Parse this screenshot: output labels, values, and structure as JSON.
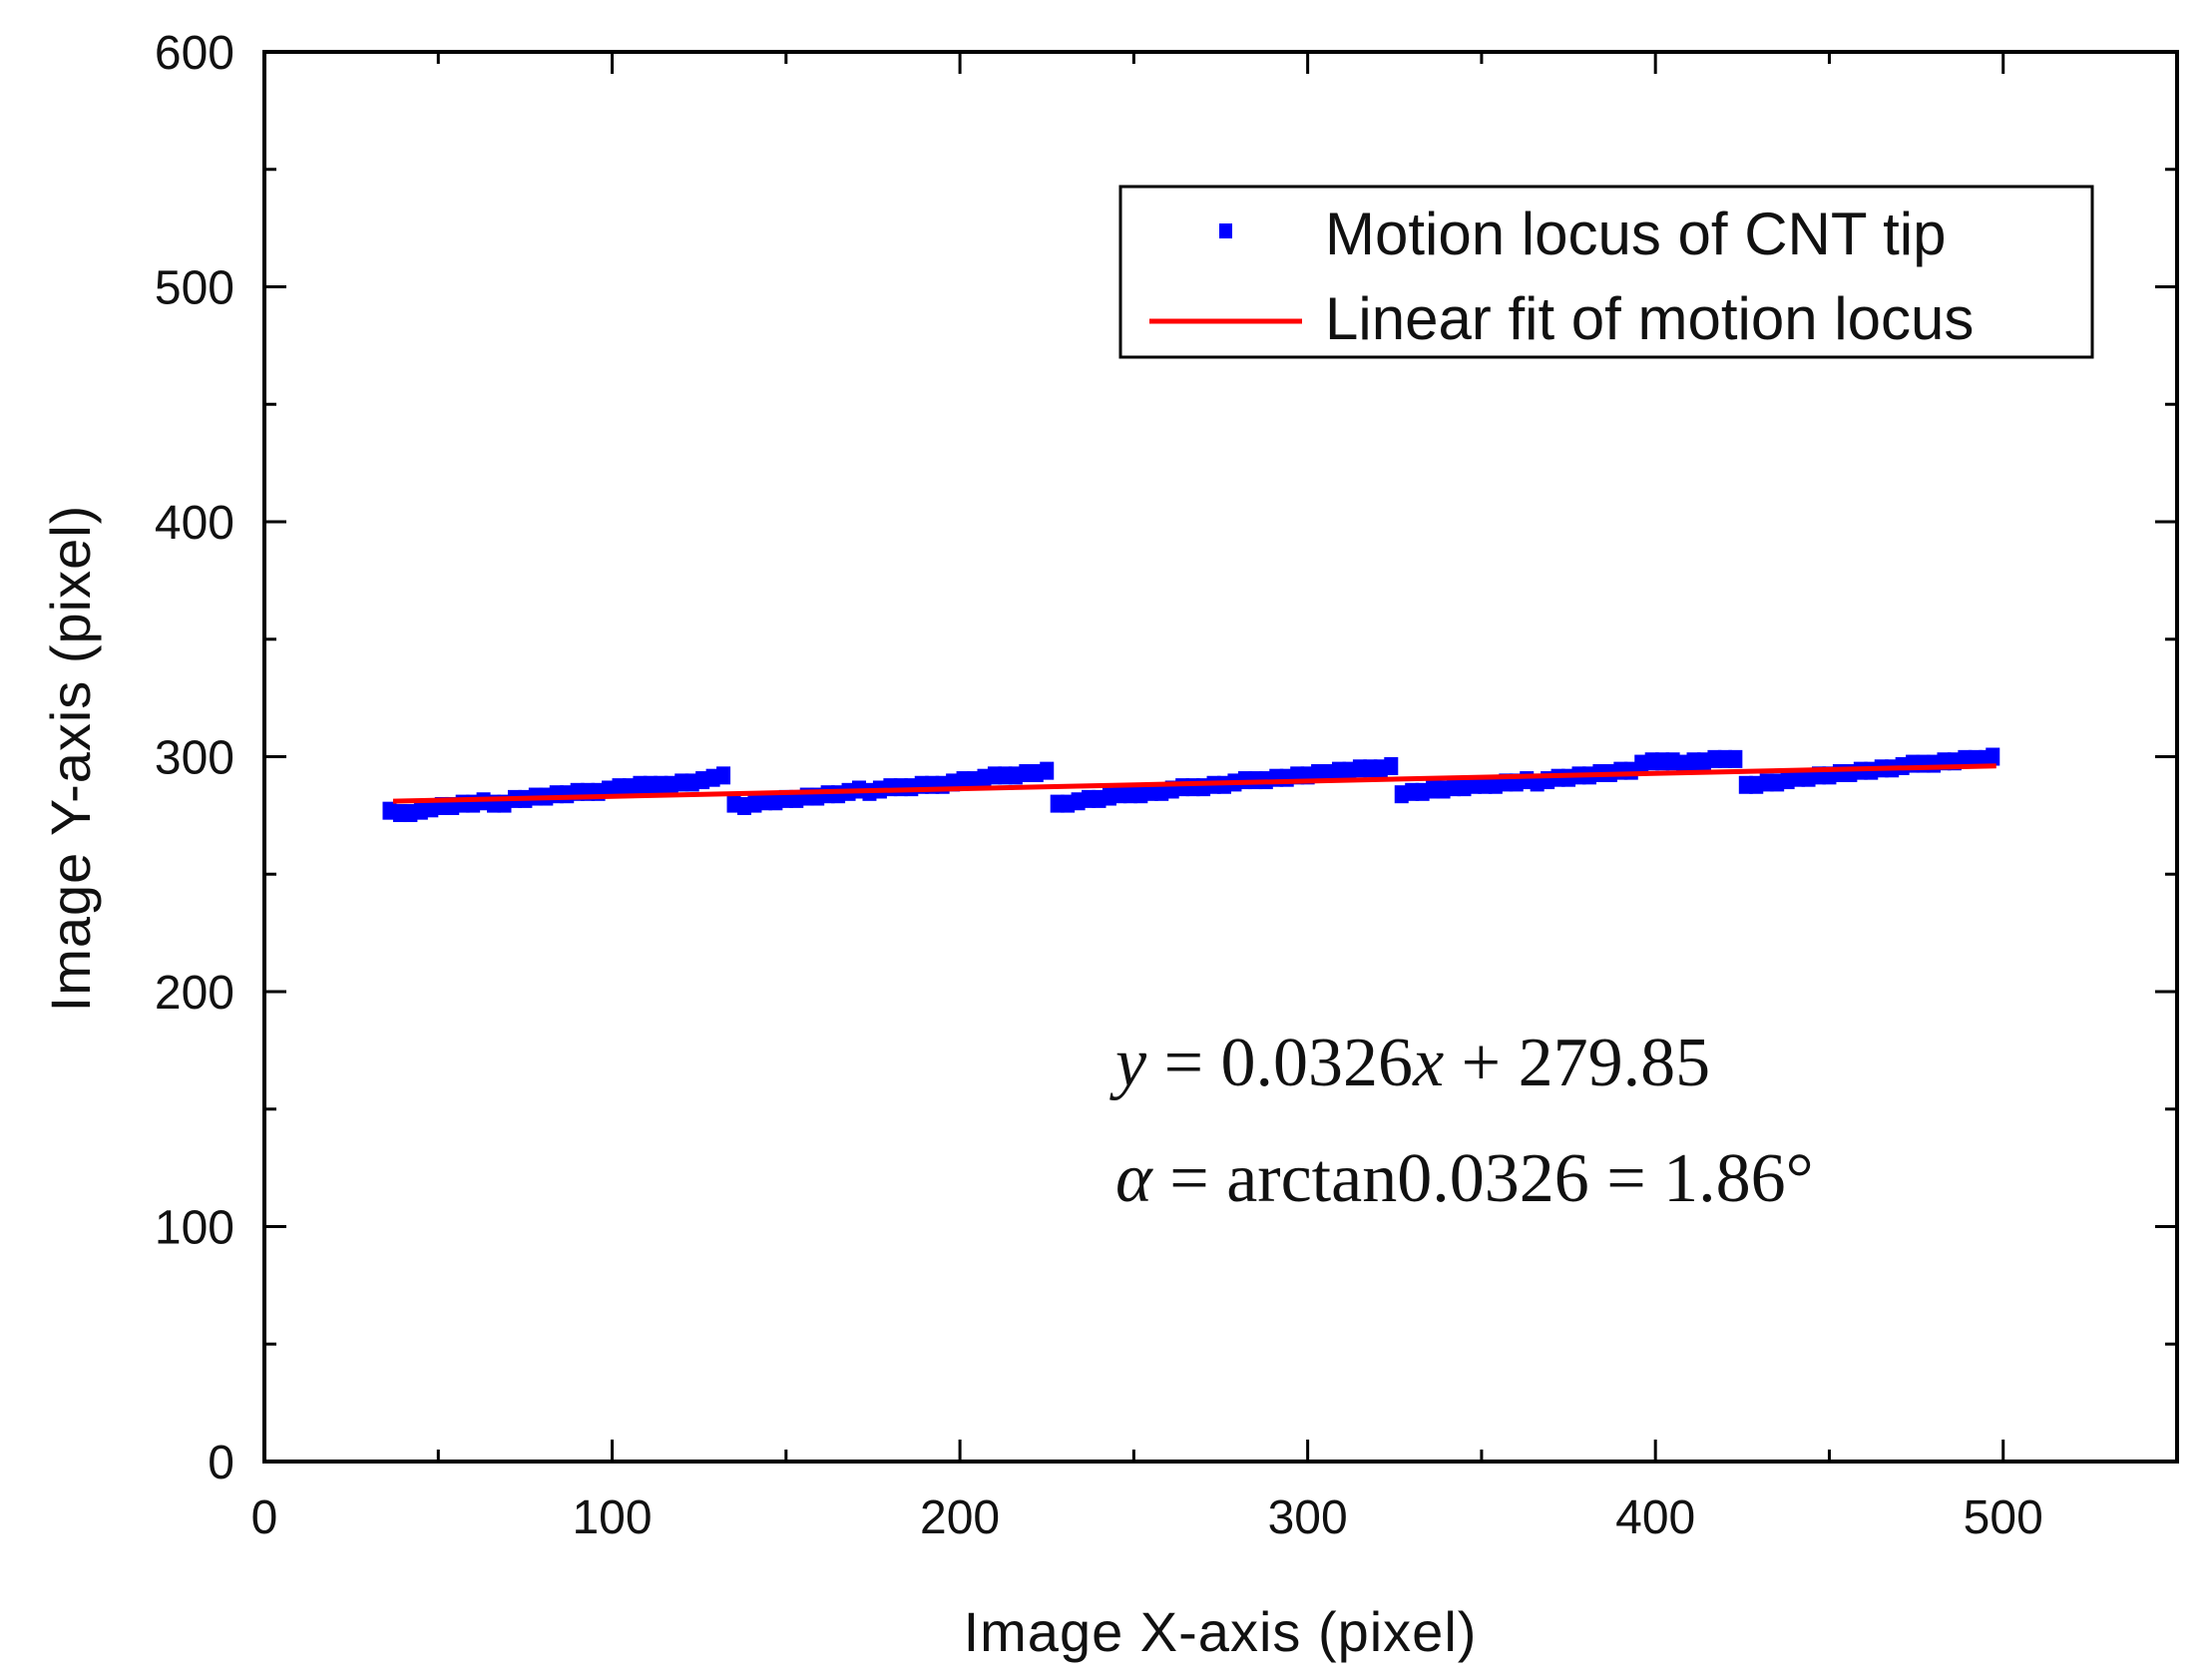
{
  "chart_data": {
    "type": "scatter",
    "title": "",
    "xlabel": "Image X-axis (pixel)",
    "ylabel": "Image Y-axis (pixel)",
    "xlim": [
      0,
      550
    ],
    "ylim": [
      0,
      600
    ],
    "x_ticks": [
      0,
      100,
      200,
      300,
      400,
      500
    ],
    "y_ticks": [
      0,
      100,
      200,
      300,
      400,
      500,
      600
    ],
    "grid": false,
    "legend_position": "top-right",
    "colors": {
      "points": "#0000ff",
      "fit": "#ff0000",
      "axis": "#000000"
    },
    "series": [
      {
        "name": "Motion locus of CNT tip",
        "kind": "scatter",
        "points": [
          [
            36,
            277
          ],
          [
            39,
            276
          ],
          [
            42,
            276
          ],
          [
            45,
            277
          ],
          [
            48,
            278
          ],
          [
            51,
            279
          ],
          [
            54,
            279
          ],
          [
            57,
            280
          ],
          [
            60,
            280
          ],
          [
            63,
            281
          ],
          [
            66,
            280
          ],
          [
            69,
            280
          ],
          [
            72,
            282
          ],
          [
            75,
            282
          ],
          [
            78,
            283
          ],
          [
            81,
            283
          ],
          [
            84,
            284
          ],
          [
            87,
            284
          ],
          [
            90,
            285
          ],
          [
            93,
            285
          ],
          [
            96,
            285
          ],
          [
            99,
            286
          ],
          [
            102,
            287
          ],
          [
            105,
            287
          ],
          [
            108,
            288
          ],
          [
            111,
            288
          ],
          [
            114,
            288
          ],
          [
            117,
            288
          ],
          [
            120,
            289
          ],
          [
            123,
            289
          ],
          [
            126,
            290
          ],
          [
            129,
            291
          ],
          [
            132,
            292
          ],
          [
            135,
            280
          ],
          [
            138,
            279
          ],
          [
            141,
            280
          ],
          [
            144,
            281
          ],
          [
            147,
            281
          ],
          [
            150,
            282
          ],
          [
            153,
            282
          ],
          [
            156,
            283
          ],
          [
            159,
            283
          ],
          [
            162,
            284
          ],
          [
            165,
            284
          ],
          [
            168,
            285
          ],
          [
            171,
            286
          ],
          [
            174,
            285
          ],
          [
            177,
            286
          ],
          [
            180,
            287
          ],
          [
            183,
            287
          ],
          [
            186,
            287
          ],
          [
            189,
            288
          ],
          [
            192,
            288
          ],
          [
            195,
            288
          ],
          [
            198,
            289
          ],
          [
            201,
            290
          ],
          [
            204,
            290
          ],
          [
            207,
            291
          ],
          [
            210,
            292
          ],
          [
            213,
            292
          ],
          [
            216,
            292
          ],
          [
            219,
            293
          ],
          [
            222,
            293
          ],
          [
            225,
            294
          ],
          [
            228,
            280
          ],
          [
            231,
            280
          ],
          [
            234,
            281
          ],
          [
            237,
            282
          ],
          [
            240,
            282
          ],
          [
            243,
            283
          ],
          [
            246,
            284
          ],
          [
            249,
            284
          ],
          [
            252,
            284
          ],
          [
            255,
            285
          ],
          [
            258,
            285
          ],
          [
            261,
            286
          ],
          [
            264,
            287
          ],
          [
            267,
            287
          ],
          [
            270,
            287
          ],
          [
            273,
            288
          ],
          [
            276,
            288
          ],
          [
            279,
            289
          ],
          [
            282,
            290
          ],
          [
            285,
            290
          ],
          [
            288,
            290
          ],
          [
            291,
            291
          ],
          [
            294,
            291
          ],
          [
            297,
            292
          ],
          [
            300,
            292
          ],
          [
            303,
            293
          ],
          [
            306,
            293
          ],
          [
            309,
            294
          ],
          [
            312,
            294
          ],
          [
            315,
            295
          ],
          [
            318,
            295
          ],
          [
            321,
            295
          ],
          [
            324,
            296
          ],
          [
            327,
            284
          ],
          [
            330,
            285
          ],
          [
            333,
            285
          ],
          [
            336,
            286
          ],
          [
            339,
            286
          ],
          [
            342,
            287
          ],
          [
            345,
            287
          ],
          [
            348,
            288
          ],
          [
            351,
            288
          ],
          [
            354,
            288
          ],
          [
            357,
            289
          ],
          [
            360,
            289
          ],
          [
            363,
            290
          ],
          [
            366,
            289
          ],
          [
            369,
            290
          ],
          [
            372,
            291
          ],
          [
            375,
            291
          ],
          [
            378,
            292
          ],
          [
            381,
            292
          ],
          [
            384,
            293
          ],
          [
            387,
            293
          ],
          [
            390,
            294
          ],
          [
            393,
            294
          ],
          [
            396,
            297
          ],
          [
            399,
            298
          ],
          [
            402,
            298
          ],
          [
            405,
            298
          ],
          [
            408,
            297
          ],
          [
            411,
            298
          ],
          [
            414,
            298
          ],
          [
            417,
            299
          ],
          [
            420,
            299
          ],
          [
            423,
            299
          ],
          [
            426,
            288
          ],
          [
            429,
            288
          ],
          [
            432,
            289
          ],
          [
            435,
            289
          ],
          [
            438,
            290
          ],
          [
            441,
            291
          ],
          [
            444,
            291
          ],
          [
            447,
            292
          ],
          [
            450,
            292
          ],
          [
            453,
            293
          ],
          [
            456,
            293
          ],
          [
            459,
            294
          ],
          [
            462,
            294
          ],
          [
            465,
            295
          ],
          [
            468,
            295
          ],
          [
            471,
            296
          ],
          [
            474,
            297
          ],
          [
            477,
            297
          ],
          [
            480,
            297
          ],
          [
            483,
            298
          ],
          [
            486,
            298
          ],
          [
            489,
            299
          ],
          [
            492,
            299
          ],
          [
            495,
            299
          ],
          [
            497,
            300
          ]
        ]
      },
      {
        "name": "Linear fit of motion locus",
        "kind": "line",
        "slope": 0.0326,
        "intercept": 279.85,
        "x_range": [
          37,
          498
        ]
      }
    ],
    "annotations": [
      {
        "id": "fit_equation",
        "italic_symbol": "y",
        "text": " = 0.0326",
        "italic_var": "x",
        "rest": " + 279.85"
      },
      {
        "id": "angle_equation",
        "italic_symbol": "α",
        "text": " = arctan0.0326 = 1.86°"
      }
    ]
  }
}
